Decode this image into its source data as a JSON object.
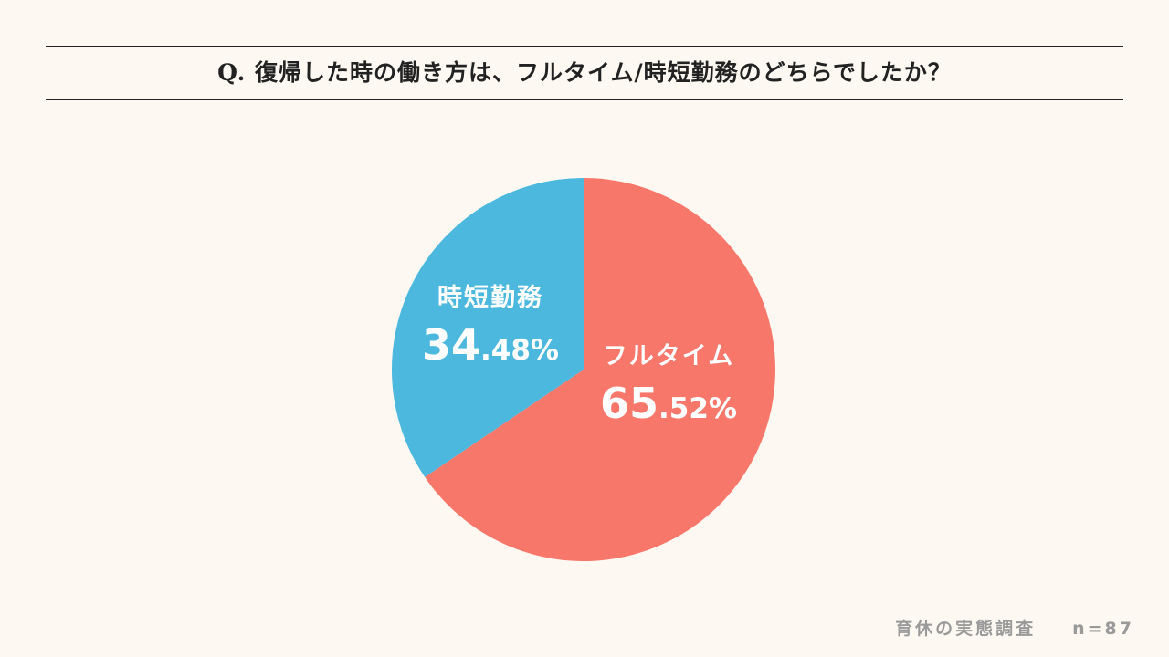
{
  "header": {
    "question": "Q. 復帰した時の働き方は、フルタイム/時短勤務のどちらでしたか？"
  },
  "chart_data": {
    "type": "pie",
    "title": "Q. 復帰した時の働き方は、フルタイム/時短勤務のどちらでしたか？",
    "categories": [
      "フルタイム",
      "時短勤務"
    ],
    "values": [
      65.52,
      34.48
    ],
    "labels": [
      {
        "name": "フルタイム",
        "int": "65",
        "dec": ".52%"
      },
      {
        "name": "時短勤務",
        "int": "34",
        "dec": ".48%"
      }
    ],
    "colors": [
      "#f7786b",
      "#4cb8de"
    ],
    "start": "12 o'clock",
    "direction": "clockwise"
  },
  "footer": {
    "survey": "育休の実態調査",
    "sample": "n=87"
  },
  "colors": {
    "background": "#fdf9f2",
    "text": "#222222",
    "footer_text": "#9a9a9a"
  }
}
